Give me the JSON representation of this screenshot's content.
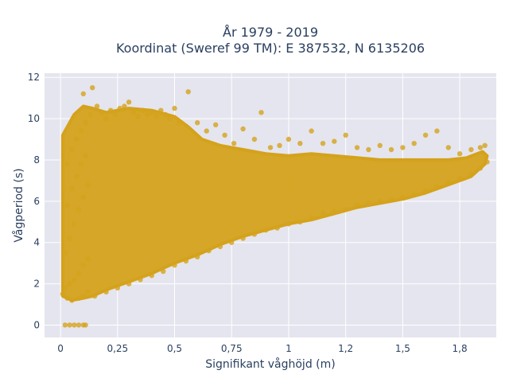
{
  "chart_data": {
    "type": "scatter",
    "title_line1": "År 1979 - 2019",
    "title_line2": "Koordinat (Sweref 99 TM): E 387532, N 6135206",
    "xlabel": "Signifikant våghöjd (m)",
    "ylabel": "Vågperiod (s)",
    "xlim": [
      -0.07,
      1.91
    ],
    "ylim": [
      -0.6,
      12.2
    ],
    "x_ticks": [
      {
        "value": 0,
        "label": "0"
      },
      {
        "value": 0.25,
        "label": "0,25"
      },
      {
        "value": 0.5,
        "label": "0,5"
      },
      {
        "value": 0.75,
        "label": "0,75"
      },
      {
        "value": 1,
        "label": "1"
      },
      {
        "value": 1.25,
        "label": "1,2"
      },
      {
        "value": 1.5,
        "label": "1,5"
      },
      {
        "value": 1.75,
        "label": "1,8"
      }
    ],
    "y_ticks": [
      {
        "value": 0,
        "label": "0"
      },
      {
        "value": 2,
        "label": "2"
      },
      {
        "value": 4,
        "label": "4"
      },
      {
        "value": 6,
        "label": "6"
      },
      {
        "value": 8,
        "label": "8"
      },
      {
        "value": 10,
        "label": "10"
      },
      {
        "value": 12,
        "label": "12"
      }
    ],
    "grid": true,
    "marker_color": "#D4A21B",
    "background_color": "#E5E5EF",
    "series": [
      {
        "values_note_excluded": true,
        "points": [
          [
            0.02,
            0
          ],
          [
            0.04,
            0
          ],
          [
            0.06,
            0
          ],
          [
            0.08,
            0
          ],
          [
            0.1,
            0
          ],
          [
            0.11,
            0
          ],
          [
            0.01,
            1.5
          ],
          [
            0.03,
            1.3
          ],
          [
            0.05,
            1.2
          ],
          [
            0.08,
            1.3
          ],
          [
            0.1,
            1.4
          ],
          [
            0.12,
            1.6
          ],
          [
            0.02,
            1.8
          ],
          [
            0.04,
            2.0
          ],
          [
            0.06,
            2.2
          ],
          [
            0.08,
            2.5
          ],
          [
            0.1,
            2.9
          ],
          [
            0.12,
            3.2
          ],
          [
            0.02,
            3.5
          ],
          [
            0.04,
            4.2
          ],
          [
            0.06,
            4.9
          ],
          [
            0.08,
            5.6
          ],
          [
            0.1,
            6.2
          ],
          [
            0.12,
            6.8
          ],
          [
            0.03,
            5.8
          ],
          [
            0.05,
            6.6
          ],
          [
            0.07,
            7.2
          ],
          [
            0.09,
            7.8
          ],
          [
            0.11,
            8.2
          ],
          [
            0.03,
            7.8
          ],
          [
            0.05,
            8.5
          ],
          [
            0.07,
            9.0
          ],
          [
            0.09,
            9.4
          ],
          [
            0.11,
            9.8
          ],
          [
            0.13,
            10.2
          ],
          [
            0.1,
            11.2
          ],
          [
            0.14,
            11.5
          ],
          [
            0.16,
            10.6
          ],
          [
            0.18,
            10.3
          ],
          [
            0.2,
            10.0
          ],
          [
            0.22,
            10.4
          ],
          [
            0.24,
            10.2
          ],
          [
            0.26,
            10.5
          ],
          [
            0.28,
            10.6
          ],
          [
            0.3,
            10.8
          ],
          [
            0.32,
            10.3
          ],
          [
            0.34,
            10.1
          ],
          [
            0.36,
            10.4
          ],
          [
            0.38,
            10.2
          ],
          [
            0.4,
            10.3
          ],
          [
            0.42,
            10.1
          ],
          [
            0.44,
            10.4
          ],
          [
            0.46,
            10.2
          ],
          [
            0.48,
            10.0
          ],
          [
            0.5,
            10.5
          ],
          [
            0.52,
            9.8
          ],
          [
            0.56,
            11.3
          ],
          [
            0.6,
            9.8
          ],
          [
            0.64,
            9.4
          ],
          [
            0.68,
            9.7
          ],
          [
            0.72,
            9.2
          ],
          [
            0.76,
            8.8
          ],
          [
            0.8,
            9.5
          ],
          [
            0.85,
            9.0
          ],
          [
            0.88,
            10.3
          ],
          [
            0.92,
            8.6
          ],
          [
            0.96,
            8.7
          ],
          [
            1.0,
            9.0
          ],
          [
            1.05,
            8.8
          ],
          [
            1.1,
            9.4
          ],
          [
            1.15,
            8.8
          ],
          [
            1.2,
            8.9
          ],
          [
            1.25,
            9.2
          ],
          [
            1.3,
            8.6
          ],
          [
            1.35,
            8.5
          ],
          [
            1.4,
            8.7
          ],
          [
            1.45,
            8.5
          ],
          [
            1.5,
            8.6
          ],
          [
            1.55,
            8.8
          ],
          [
            1.6,
            9.2
          ],
          [
            1.65,
            9.4
          ],
          [
            1.7,
            8.6
          ],
          [
            1.75,
            8.3
          ],
          [
            1.8,
            8.5
          ],
          [
            1.84,
            8.6
          ],
          [
            1.86,
            8.7
          ],
          [
            0.15,
            1.4
          ],
          [
            0.2,
            1.6
          ],
          [
            0.25,
            1.8
          ],
          [
            0.3,
            2.0
          ],
          [
            0.35,
            2.2
          ],
          [
            0.4,
            2.4
          ],
          [
            0.45,
            2.6
          ],
          [
            0.5,
            2.9
          ],
          [
            0.55,
            3.1
          ],
          [
            0.6,
            3.3
          ],
          [
            0.65,
            3.6
          ],
          [
            0.7,
            3.8
          ],
          [
            0.75,
            4.0
          ],
          [
            0.8,
            4.2
          ],
          [
            0.85,
            4.4
          ],
          [
            0.9,
            4.6
          ],
          [
            0.95,
            4.7
          ],
          [
            1.0,
            4.9
          ],
          [
            1.05,
            5.0
          ],
          [
            1.1,
            5.2
          ],
          [
            1.15,
            5.4
          ],
          [
            1.2,
            5.5
          ],
          [
            1.25,
            5.6
          ],
          [
            1.3,
            5.8
          ],
          [
            1.35,
            5.9
          ],
          [
            1.4,
            6.0
          ],
          [
            1.45,
            6.1
          ],
          [
            1.5,
            6.2
          ],
          [
            1.55,
            6.3
          ],
          [
            1.6,
            6.5
          ],
          [
            1.65,
            6.7
          ],
          [
            1.7,
            6.9
          ],
          [
            1.75,
            7.1
          ],
          [
            1.8,
            7.3
          ],
          [
            1.84,
            7.6
          ],
          [
            1.87,
            7.9
          ]
        ]
      }
    ]
  }
}
